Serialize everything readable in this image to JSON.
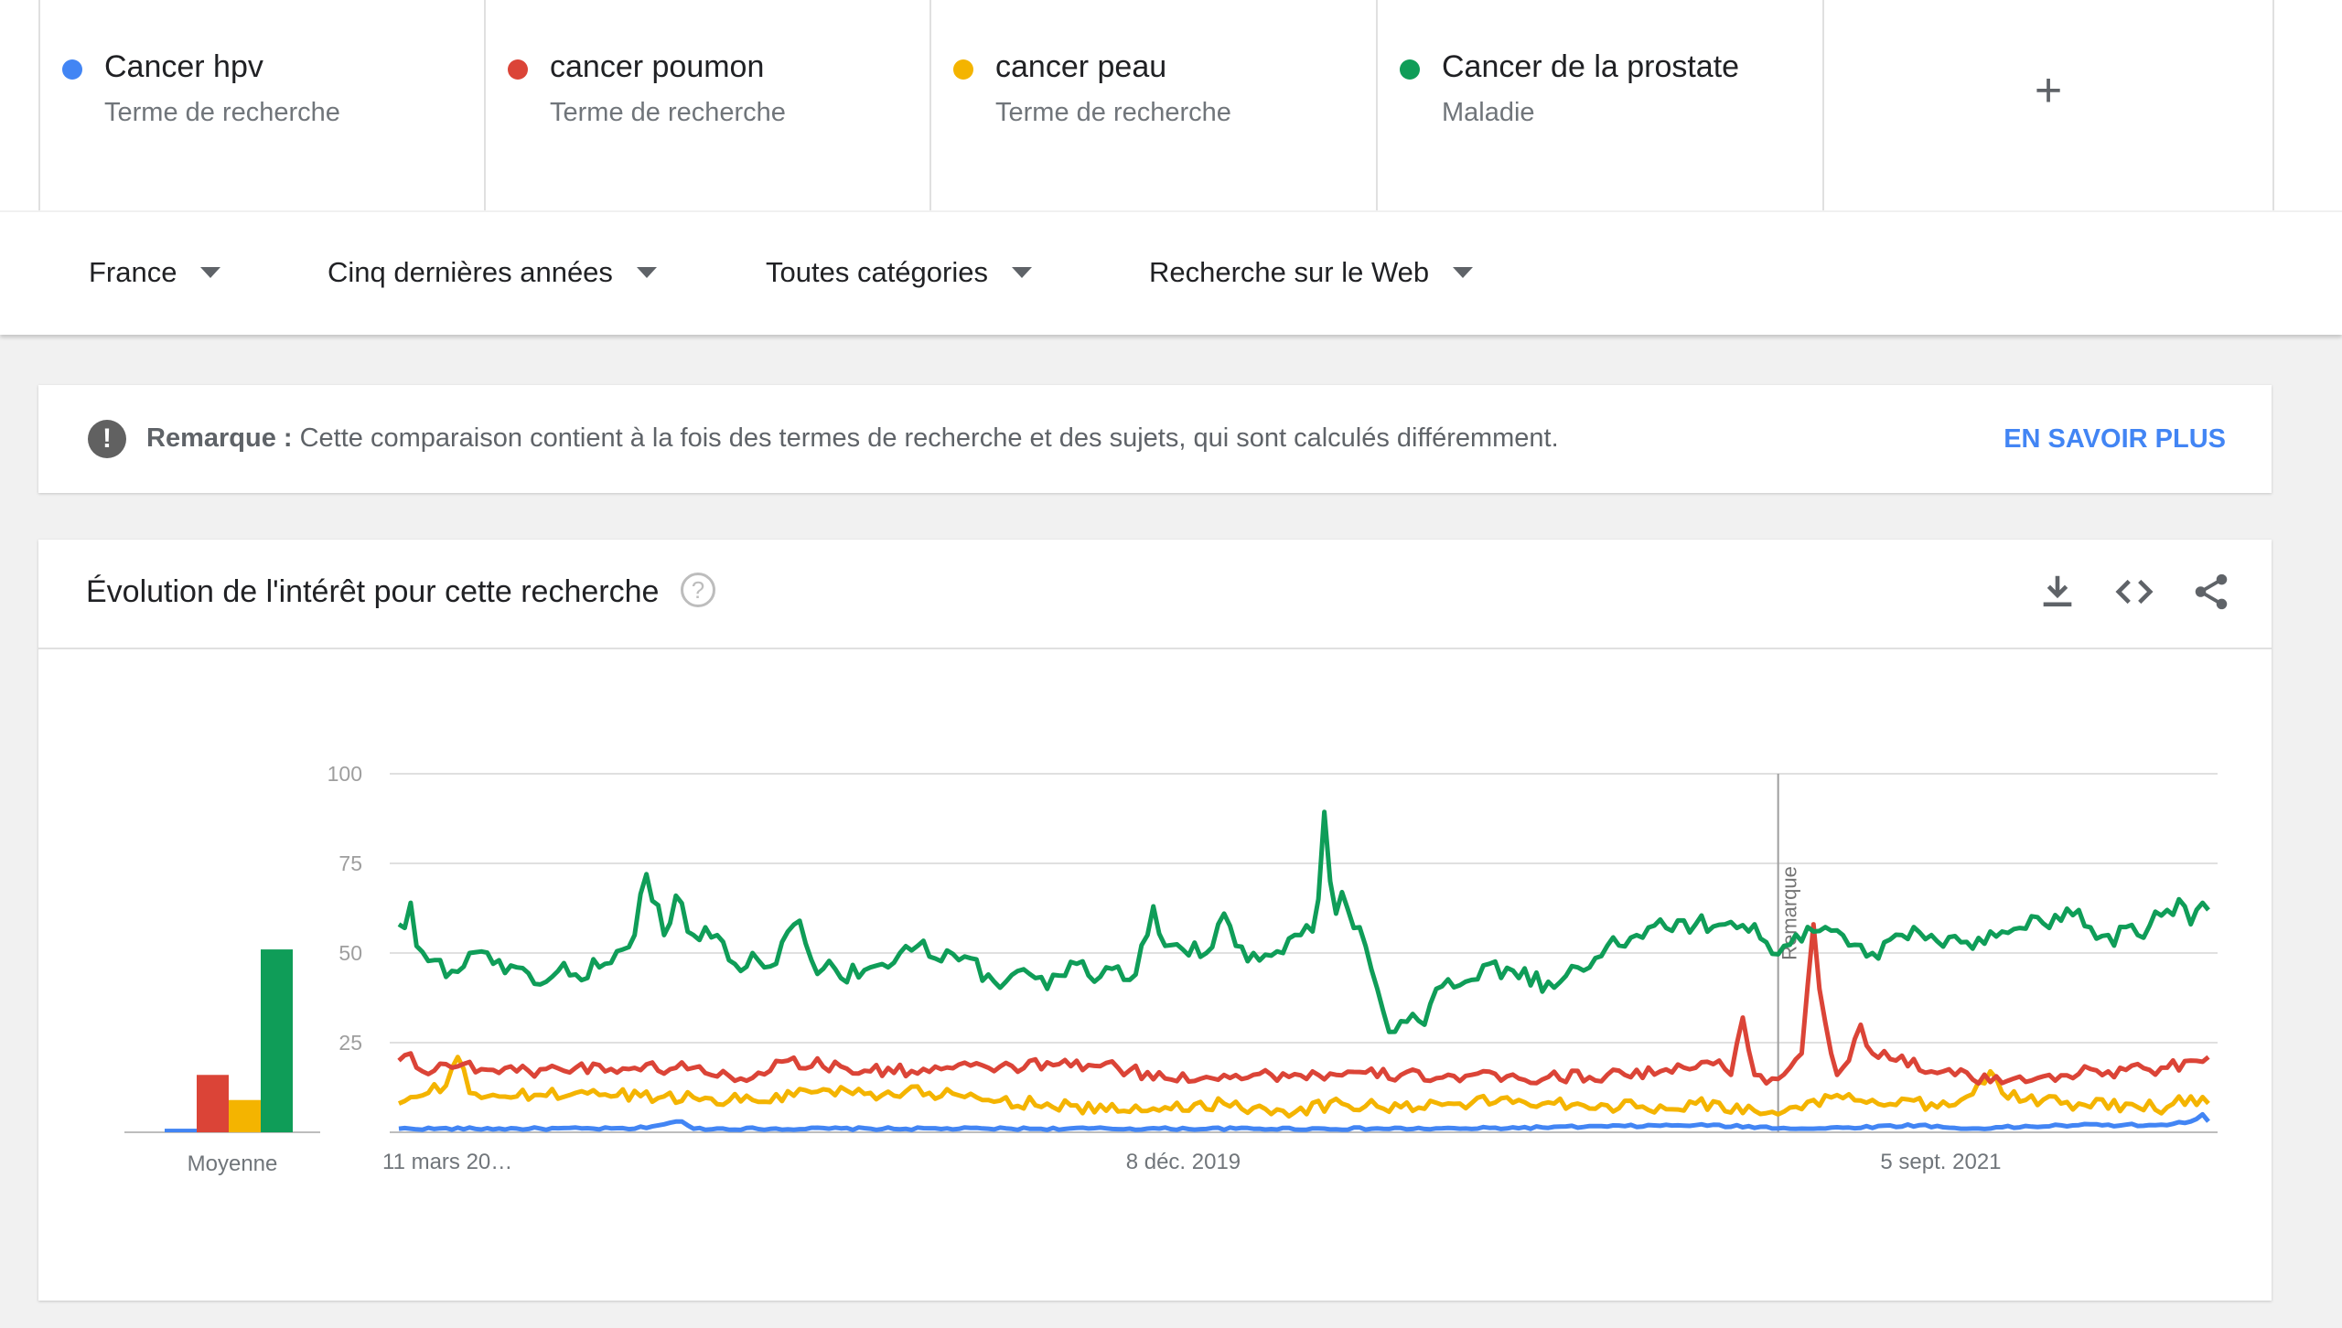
{
  "terms": [
    {
      "name": "Cancer hpv",
      "type": "Terme de recherche",
      "color": "#4285f4"
    },
    {
      "name": "cancer poumon",
      "type": "Terme de recherche",
      "color": "#db4437"
    },
    {
      "name": "cancer peau",
      "type": "Terme de recherche",
      "color": "#f4b400"
    },
    {
      "name": "Cancer de la prostate",
      "type": "Maladie",
      "color": "#0f9d58"
    }
  ],
  "add_term_label": "+",
  "filters": {
    "region": "France",
    "period": "Cinq dernières années",
    "category": "Toutes catégories",
    "search_type": "Recherche sur le Web"
  },
  "notice": {
    "label": "Remarque :",
    "text": "Cette comparaison contient à la fois des termes de recherche et des sujets, qui sont calculés différemment.",
    "link": "EN SAVOIR PLUS"
  },
  "card": {
    "title": "Évolution de l'intérêt pour cette recherche",
    "help_glyph": "?",
    "actions": [
      "download-icon",
      "embed-icon",
      "share-icon"
    ]
  },
  "chart_data": {
    "type": "line",
    "x_tick_labels": [
      "11 mars 20…",
      "8 déc. 2019",
      "5 sept. 2021"
    ],
    "y_ticks": [
      25,
      50,
      75,
      100
    ],
    "ylim": [
      0,
      100
    ],
    "annotation": "Remarque",
    "annotation_week_index": 234,
    "average_label": "Moyenne",
    "grid": true,
    "series": [
      {
        "name": "Cancer hpv",
        "color": "#4285f4",
        "average": 1,
        "anchors": [
          [
            0,
            1
          ],
          [
            40,
            1
          ],
          [
            48,
            3
          ],
          [
            50,
            1
          ],
          [
            100,
            1
          ],
          [
            180,
            1
          ],
          [
            220,
            2
          ],
          [
            240,
            1
          ],
          [
            258,
            2
          ],
          [
            265,
            1
          ],
          [
            285,
            2
          ],
          [
            300,
            2
          ],
          [
            304,
            3
          ],
          [
            306,
            5
          ],
          [
            307,
            3
          ]
        ]
      },
      {
        "name": "cancer poumon",
        "color": "#db4437",
        "average": 16,
        "anchors": [
          [
            0,
            20
          ],
          [
            2,
            22
          ],
          [
            4,
            17
          ],
          [
            8,
            19
          ],
          [
            20,
            17
          ],
          [
            30,
            18
          ],
          [
            50,
            18
          ],
          [
            58,
            15
          ],
          [
            66,
            20
          ],
          [
            80,
            17
          ],
          [
            100,
            18
          ],
          [
            112,
            19
          ],
          [
            122,
            18
          ],
          [
            130,
            15
          ],
          [
            140,
            16
          ],
          [
            156,
            16
          ],
          [
            170,
            16
          ],
          [
            190,
            15
          ],
          [
            205,
            16
          ],
          [
            214,
            17
          ],
          [
            220,
            18
          ],
          [
            224,
            20
          ],
          [
            226,
            16
          ],
          [
            228,
            32
          ],
          [
            230,
            16
          ],
          [
            233,
            15
          ],
          [
            236,
            18
          ],
          [
            238,
            22
          ],
          [
            240,
            58
          ],
          [
            241,
            40
          ],
          [
            243,
            22
          ],
          [
            244,
            16
          ],
          [
            246,
            20
          ],
          [
            248,
            30
          ],
          [
            250,
            22
          ],
          [
            254,
            20
          ],
          [
            262,
            17
          ],
          [
            270,
            14
          ],
          [
            280,
            16
          ],
          [
            290,
            17
          ],
          [
            300,
            18
          ],
          [
            304,
            20
          ],
          [
            307,
            21
          ]
        ]
      },
      {
        "name": "cancer peau",
        "color": "#f4b400",
        "average": 9,
        "anchors": [
          [
            0,
            8
          ],
          [
            5,
            11
          ],
          [
            8,
            13
          ],
          [
            10,
            21
          ],
          [
            12,
            11
          ],
          [
            20,
            10
          ],
          [
            30,
            11
          ],
          [
            45,
            10
          ],
          [
            60,
            9
          ],
          [
            72,
            12
          ],
          [
            80,
            11
          ],
          [
            90,
            11
          ],
          [
            100,
            9
          ],
          [
            110,
            8
          ],
          [
            120,
            6
          ],
          [
            130,
            7
          ],
          [
            140,
            8
          ],
          [
            150,
            6
          ],
          [
            160,
            8
          ],
          [
            170,
            7
          ],
          [
            180,
            8
          ],
          [
            190,
            9
          ],
          [
            200,
            8
          ],
          [
            210,
            7
          ],
          [
            220,
            8
          ],
          [
            230,
            6
          ],
          [
            234,
            5
          ],
          [
            240,
            9
          ],
          [
            250,
            9
          ],
          [
            260,
            8
          ],
          [
            265,
            9
          ],
          [
            270,
            17
          ],
          [
            272,
            11
          ],
          [
            276,
            9
          ],
          [
            285,
            8
          ],
          [
            295,
            7
          ],
          [
            300,
            7
          ],
          [
            304,
            10
          ],
          [
            307,
            8
          ]
        ]
      },
      {
        "name": "Cancer de la prostate",
        "color": "#0f9d58",
        "average": 51,
        "anchors": [
          [
            0,
            58
          ],
          [
            1,
            57
          ],
          [
            2,
            64
          ],
          [
            3,
            52
          ],
          [
            6,
            48
          ],
          [
            9,
            45
          ],
          [
            12,
            50
          ],
          [
            16,
            47
          ],
          [
            20,
            46
          ],
          [
            25,
            42
          ],
          [
            27,
            45
          ],
          [
            30,
            44
          ],
          [
            35,
            47
          ],
          [
            38,
            51
          ],
          [
            40,
            55
          ],
          [
            42,
            72
          ],
          [
            45,
            55
          ],
          [
            47,
            66
          ],
          [
            50,
            55
          ],
          [
            54,
            55
          ],
          [
            56,
            48
          ],
          [
            58,
            45
          ],
          [
            60,
            50
          ],
          [
            62,
            46
          ],
          [
            64,
            47
          ],
          [
            66,
            56
          ],
          [
            68,
            59
          ],
          [
            70,
            48
          ],
          [
            75,
            43
          ],
          [
            80,
            46
          ],
          [
            83,
            46
          ],
          [
            85,
            50
          ],
          [
            88,
            52
          ],
          [
            90,
            49
          ],
          [
            95,
            48
          ],
          [
            100,
            44
          ],
          [
            103,
            42
          ],
          [
            105,
            45
          ],
          [
            108,
            43
          ],
          [
            110,
            40
          ],
          [
            115,
            47
          ],
          [
            118,
            42
          ],
          [
            120,
            46
          ],
          [
            125,
            44
          ],
          [
            127,
            55
          ],
          [
            128,
            63
          ],
          [
            130,
            52
          ],
          [
            133,
            51
          ],
          [
            137,
            50
          ],
          [
            139,
            58
          ],
          [
            140,
            61
          ],
          [
            142,
            52
          ],
          [
            145,
            50
          ],
          [
            150,
            50
          ],
          [
            153,
            55
          ],
          [
            155,
            56
          ],
          [
            156,
            65
          ],
          [
            156.5,
            99
          ],
          [
            158,
            70
          ],
          [
            159,
            61
          ],
          [
            160,
            67
          ],
          [
            162,
            57
          ],
          [
            164,
            52
          ],
          [
            166,
            40
          ],
          [
            168,
            28
          ],
          [
            170,
            31
          ],
          [
            172,
            33
          ],
          [
            174,
            30
          ],
          [
            176,
            40
          ],
          [
            180,
            41
          ],
          [
            185,
            47
          ],
          [
            190,
            43
          ],
          [
            195,
            42
          ],
          [
            200,
            46
          ],
          [
            205,
            52
          ],
          [
            210,
            55
          ],
          [
            215,
            57
          ],
          [
            220,
            58
          ],
          [
            225,
            58
          ],
          [
            227,
            57
          ],
          [
            230,
            58
          ],
          [
            232,
            53
          ],
          [
            235,
            52
          ],
          [
            240,
            56
          ],
          [
            245,
            55
          ],
          [
            250,
            50
          ],
          [
            255,
            55
          ],
          [
            260,
            55
          ],
          [
            265,
            53
          ],
          [
            270,
            56
          ],
          [
            275,
            57
          ],
          [
            278,
            60
          ],
          [
            280,
            57
          ],
          [
            282,
            59
          ],
          [
            285,
            62
          ],
          [
            288,
            54
          ],
          [
            290,
            55
          ],
          [
            295,
            55
          ],
          [
            300,
            62
          ],
          [
            302,
            65
          ],
          [
            304,
            58
          ],
          [
            306,
            64
          ],
          [
            307,
            62
          ]
        ]
      }
    ]
  }
}
